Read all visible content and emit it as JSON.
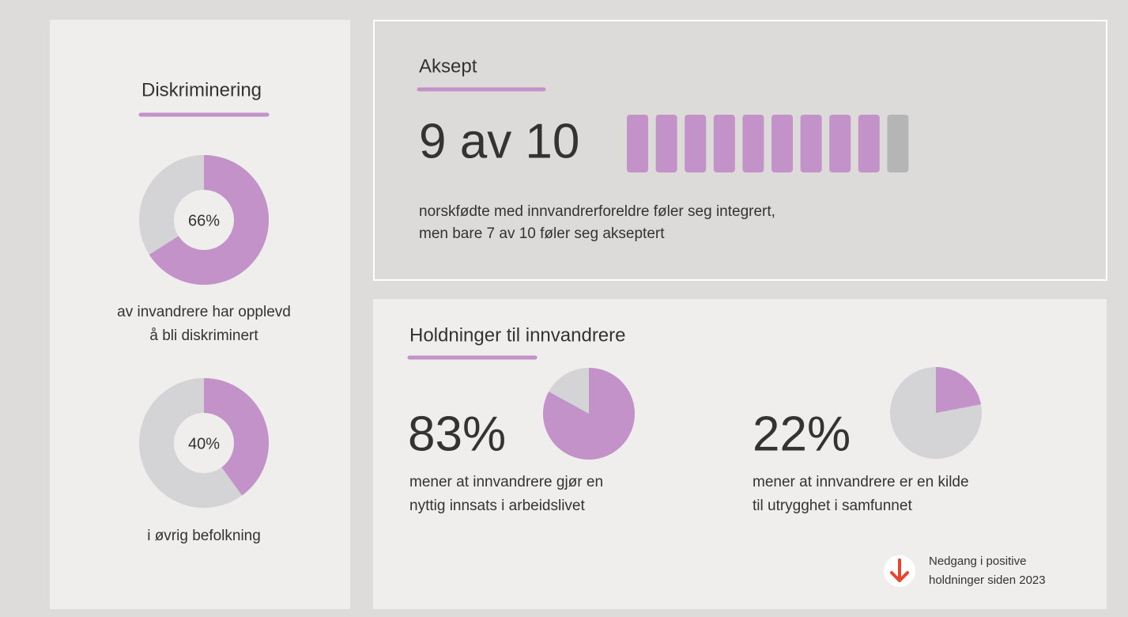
{
  "sections": [
    {
      "title": "Diskriminering"
    },
    {
      "title": "Aksept"
    },
    {
      "title": "Holdninger til innvandrere"
    }
  ],
  "chart_data": [
    {
      "type": "donut",
      "values": [
        66
      ],
      "value_labels": [
        "66%"
      ],
      "color": "#c392c8",
      "rest_color": "#d4d4d6",
      "caption": [
        "av invandrere har opplevd",
        "å bli diskriminert"
      ]
    },
    {
      "type": "donut",
      "values": [
        40
      ],
      "value_labels": [
        "40%"
      ],
      "color": "#c392c8",
      "rest_color": "#d4d4d6",
      "caption": [
        "i øvrig befolkning"
      ]
    },
    {
      "type": "pictogram",
      "values": [
        9
      ],
      "value_labels": [
        "9 av 10"
      ],
      "total": 10,
      "color": "#c392c8",
      "rest_color": "#b5b5b5",
      "caption": [
        "norskfødte med innvandrerforeldre føler seg integrert,",
        "men bare 7 av 10 føler seg akseptert"
      ]
    },
    {
      "type": "pie",
      "values": [
        83
      ],
      "value_labels": [
        "83%"
      ],
      "color": "#c392c8",
      "rest_color": "#d4d4d6",
      "caption": [
        "mener at innvandrere gjør en",
        "nyttig innsats i arbeidslivet"
      ]
    },
    {
      "type": "pie",
      "values": [
        22
      ],
      "value_labels": [
        "22%"
      ],
      "color": "#c392c8",
      "rest_color": "#d4d4d6",
      "caption": [
        "mener at innvandrere er en kilde",
        "til utrygghet i samfunnet"
      ]
    }
  ],
  "note": [
    "Nedgang i positive",
    "holdninger siden 2023"
  ]
}
